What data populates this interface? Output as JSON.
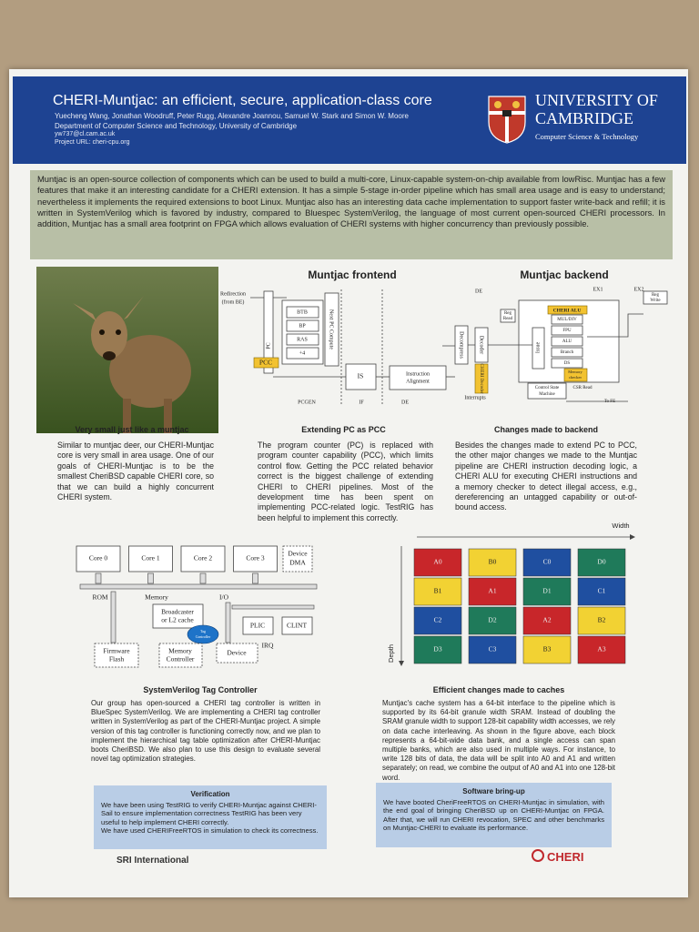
{
  "header": {
    "title": "CHERI-Muntjac: an efficient, secure, application-class core",
    "authors": "Yuecheng Wang, Jonathan Woodruff, Peter Rugg, Alexandre Joannou, Samuel W. Stark and Simon W. Moore",
    "affiliation": "Department of Computer Science and Technology, University of Cambridge",
    "email": "yw737@cl.cam.ac.uk",
    "project_url": "Project URL: cheri-cpu.org",
    "university": [
      "UNIVERSITY OF",
      "CAMBRIDGE"
    ],
    "department": "Computer Science & Technology"
  },
  "abstract": "Muntjac is an open-source collection of components which can be used to build a multi-core, Linux-capable system-on-chip available from lowRisc. Muntjac has a few features that make it an interesting candidate for a CHERI extension. It has a simple 5-stage in-order pipeline which has small area usage and is easy to understand; nevertheless it implements the required extensions to boot Linux. Muntjac also has an interesting data cache implementation to support faster write-back and refill; it is written in SystemVerilog which is favored by industry, compared to Bluespec SystemVerilog, the language of most current open-sourced CHERI processors. In addition, Muntjac has a small area footprint on FPGA which allows evaluation of CHERI systems with higher concurrency than previously possible.",
  "frontend": {
    "title": "Muntjac frontend",
    "redirection": [
      "Redirection",
      "(from BE)"
    ],
    "btb": "BTB",
    "bp": "BP",
    "ras": "RAS",
    "plus4": "+4",
    "next_pc": "Next PC Compute",
    "pc": "PC",
    "pcc": "PCC",
    "is": "IS",
    "align": [
      "Instruction",
      "Alignment"
    ],
    "stages": [
      "PCGEN",
      "IF",
      "DE"
    ]
  },
  "backend": {
    "title": "Muntjac backend",
    "stages": [
      "DE",
      "EX1",
      "EX2"
    ],
    "reg_read": [
      "Reg",
      "Read"
    ],
    "reg_write": [
      "Reg",
      "Write"
    ],
    "decompress": "Decompress",
    "decoder": "Decoder",
    "cheri_decoder": [
      "CHERI",
      "Decoder"
    ],
    "interrupts": "Interrupts",
    "issue": "Issue",
    "cheri_alu": "CHERI ALU",
    "units": [
      "MUL/DIV",
      "FPU",
      "ALU",
      "Branch",
      "DS"
    ],
    "memory_checker": [
      "Memory",
      "checker"
    ],
    "csm": [
      "Control State",
      "Machine"
    ],
    "csr_read": "CSR Read",
    "to_fe": "To FE"
  },
  "sections": [
    {
      "heading": "Very small just like a muntjac",
      "body": "Similar to muntjac deer, our CHERI-Muntjac core is very small in area usage. One of our goals of CHERI-Muntjac is to be the smallest CheriBSD capable CHERI core, so that we can build a highly concurrent CHERI system."
    },
    {
      "heading": "Extending PC as PCC",
      "body": "The program counter (PC) is replaced with program counter capability (PCC), which limits control flow. Getting the PCC related behavior correct is the biggest challenge of extending CHERI to CHERI pipelines. Most of the development time has been spent on implementing PCC-related logic. TestRIG has been helpful to implement this correctly."
    },
    {
      "heading": "Changes made to backend",
      "body": "Besides the changes made to extend PC to PCC, the other major changes we made to the Muntjac pipeline are CHERI instruction decoding logic, a CHERI ALU for executing CHERI instructions and a memory checker to detect illegal access, e.g., dereferencing an untagged capability or out-of-bound access."
    }
  ],
  "tag_diagram": {
    "cores": [
      "Core 0",
      "Core 1",
      "Core 2",
      "Core 3"
    ],
    "dma": [
      "Device",
      "DMA"
    ],
    "rom": "ROM",
    "memory": "Memory",
    "io": "I/O",
    "broadcaster": [
      "Broadcaster",
      "or L2 cache"
    ],
    "tag_controller": [
      "Tag",
      "Controller"
    ],
    "plic": "PLIC",
    "clint": "CLINT",
    "irq": "IRQ",
    "flash": [
      "Firmware",
      "Flash"
    ],
    "mem_ctrl": [
      "Memory",
      "Controller"
    ],
    "device": "Device"
  },
  "cache_diagram": {
    "width_label": "Width",
    "depth_label": "Depth",
    "columns": [
      [
        {
          "label": "A0",
          "color": "#c8262a"
        },
        {
          "label": "B1",
          "color": "#f2d233"
        },
        {
          "label": "C2",
          "color": "#1f4fa0"
        },
        {
          "label": "D3",
          "color": "#1f7a5a"
        }
      ],
      [
        {
          "label": "B0",
          "color": "#f2d233"
        },
        {
          "label": "A1",
          "color": "#c8262a"
        },
        {
          "label": "D2",
          "color": "#1f7a5a"
        },
        {
          "label": "C3",
          "color": "#1f4fa0"
        }
      ],
      [
        {
          "label": "C0",
          "color": "#1f4fa0"
        },
        {
          "label": "D1",
          "color": "#1f7a5a"
        },
        {
          "label": "A2",
          "color": "#c8262a"
        },
        {
          "label": "B3",
          "color": "#f2d233"
        }
      ],
      [
        {
          "label": "D0",
          "color": "#1f7a5a"
        },
        {
          "label": "C1",
          "color": "#1f4fa0"
        },
        {
          "label": "B2",
          "color": "#f2d233"
        },
        {
          "label": "A3",
          "color": "#c8262a"
        }
      ]
    ]
  },
  "lower_sections": [
    {
      "heading": "SystemVerilog Tag Controller",
      "body": "Our group has open-sourced a CHERI tag controller is written in BlueSpec SystemVerilog. We are implementing a CHERI tag controller written in SystemVerilog as part of the CHERI-Muntjac project. A simple version of this tag controller is functioning correctly now, and we plan to implement the hierarchical tag table optimization after CHERI-Muntjac boots CheriBSD. We also plan to use this design to evaluate several novel tag optimization strategies."
    },
    {
      "heading": "Efficient changes made to caches",
      "body": "Muntjac's cache system has a 64-bit interface to the pipeline which is supported by its 64-bit granule width SRAM. Instead of doubling the SRAM granule width to support 128-bit capability width accesses, we rely on data cache interleaving. As shown in the figure above, each block represents a 64-bit-wide data bank, and a single access can span multiple banks, which are also used in multiple ways. For instance, to write 128 bits of data, the data will be split into A0 and A1 and written separately; on read, we combine the output of A0 and A1 into one 128-bit word."
    }
  ],
  "boxes": [
    {
      "heading": "Verification",
      "body": [
        "We have been using TestRIG to verify CHERI-Muntjac against CHERI-Sail to ensure implementation correctness TestRIG has been very useful to help implement CHERI correctly.",
        "We have used CHERIFreeRTOS in simulation to check its correctness."
      ]
    },
    {
      "heading": "Software bring-up",
      "body": [
        "We have booted CheriFreeRTOS on CHERI-Muntjac in simulation, with the end goal of bringing CheriBSD up on CHERI-Muntjac on FPGA. After that, we will run CHERI revocation, SPEC and other benchmarks on Muntjac-CHERI to evaluate its performance."
      ]
    }
  ],
  "footer": {
    "sri": "SRI International",
    "cheri": "CHERI"
  }
}
